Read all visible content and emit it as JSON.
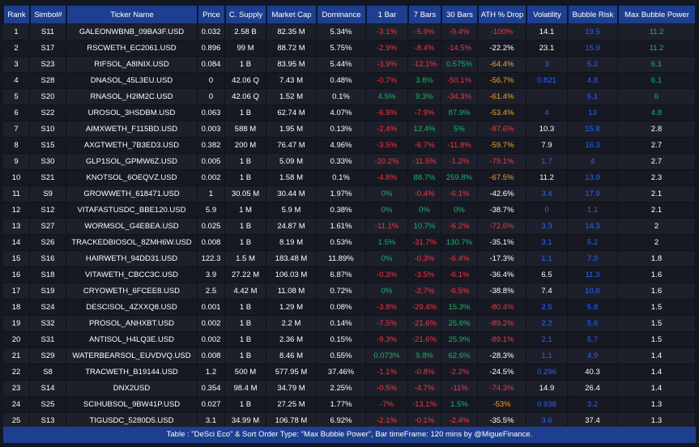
{
  "columns": [
    "Rank",
    "Simbol#",
    "Ticker Name",
    "Price",
    "C. Supply",
    "Market Cap",
    "Dominance",
    "1 Bar",
    "7 Bars",
    "30 Bars",
    "ATH % Drop",
    "Volatility",
    "Bubble Risk",
    "Max Bubble Power"
  ],
  "colors": {
    "red": "#f23645",
    "green": "#16b56a",
    "orange": "#f7a21b",
    "blue": "#2962ff",
    "header_bg": "#1e3f8f"
  },
  "rows": [
    {
      "rank": "1",
      "sym": "S11",
      "ticker": "GALEONWBNB_09BA3F.USD",
      "price": "0.032",
      "supply": "2.58 B",
      "mcap": "82.35 M",
      "dom": "5.34%",
      "b1": "-3.1%",
      "b1c": "red",
      "b7": "-5.9%",
      "b7c": "red",
      "b30": "-9.4%",
      "b30c": "red",
      "ath": "-100%",
      "athc": "red",
      "vol": "14.1",
      "volc": "white",
      "risk": "19.5",
      "riskc": "blue",
      "power": "11.2",
      "powerc": "green"
    },
    {
      "rank": "2",
      "sym": "S17",
      "ticker": "RSCWETH_EC2061.USD",
      "price": "0.896",
      "supply": "99 M",
      "mcap": "88.72 M",
      "dom": "5.75%",
      "b1": "-2.9%",
      "b1c": "red",
      "b7": "-8.4%",
      "b7c": "red",
      "b30": "-14.5%",
      "b30c": "red",
      "ath": "-22.2%",
      "athc": "white",
      "vol": "23.1",
      "volc": "white",
      "risk": "15.9",
      "riskc": "blue",
      "power": "11.2",
      "powerc": "green"
    },
    {
      "rank": "3",
      "sym": "S23",
      "ticker": "RIFSOL_A8INIX.USD",
      "price": "0.084",
      "supply": "1 B",
      "mcap": "83.95 M",
      "dom": "5.44%",
      "b1": "-3.9%",
      "b1c": "red",
      "b7": "-12.1%",
      "b7c": "red",
      "b30": "0.575%",
      "b30c": "green",
      "ath": "-64.4%",
      "athc": "orange",
      "vol": "3",
      "volc": "blue",
      "risk": "5.2",
      "riskc": "blue",
      "power": "6.1",
      "powerc": "green"
    },
    {
      "rank": "4",
      "sym": "S28",
      "ticker": "DNASOL_45L3EU.USD",
      "price": "0",
      "supply": "42.06 Q",
      "mcap": "7.43 M",
      "dom": "0.48%",
      "b1": "-0.7%",
      "b1c": "red",
      "b7": "3.8%",
      "b7c": "green",
      "b30": "-50.1%",
      "b30c": "red",
      "ath": "-56.7%",
      "athc": "orange",
      "vol": "0.821",
      "volc": "blue",
      "risk": "4.8",
      "riskc": "blue",
      "power": "6.1",
      "powerc": "green"
    },
    {
      "rank": "5",
      "sym": "S20",
      "ticker": "RNASOL_H2IM2C.USD",
      "price": "0",
      "supply": "42.06 Q",
      "mcap": "1.52 M",
      "dom": "0.1%",
      "b1": "4.5%",
      "b1c": "green",
      "b7": "9.3%",
      "b7c": "green",
      "b30": "-34.3%",
      "b30c": "red",
      "ath": "-61.4%",
      "athc": "orange",
      "vol": "",
      "volc": "white",
      "risk": "6.1",
      "riskc": "blue",
      "power": "6",
      "powerc": "green"
    },
    {
      "rank": "6",
      "sym": "S22",
      "ticker": "UROSOL_3HSDBM.USD",
      "price": "0.063",
      "supply": "1 B",
      "mcap": "62.74 M",
      "dom": "4.07%",
      "b1": "-6.9%",
      "b1c": "red",
      "b7": "-7.9%",
      "b7c": "red",
      "b30": "87.9%",
      "b30c": "green",
      "ath": "-53.4%",
      "athc": "orange",
      "vol": "4",
      "volc": "blue",
      "risk": "13",
      "riskc": "blue",
      "power": "4.8",
      "powerc": "green"
    },
    {
      "rank": "7",
      "sym": "S10",
      "ticker": "AIMXWETH_F115BD.USD",
      "price": "0.003",
      "supply": "588 M",
      "mcap": "1.95 M",
      "dom": "0.13%",
      "b1": "-2.4%",
      "b1c": "red",
      "b7": "12.4%",
      "b7c": "green",
      "b30": "5%",
      "b30c": "green",
      "ath": "-87.6%",
      "athc": "red",
      "vol": "10.3",
      "volc": "white",
      "risk": "15.8",
      "riskc": "blue",
      "power": "2.8",
      "powerc": "white"
    },
    {
      "rank": "8",
      "sym": "S15",
      "ticker": "AXGTWETH_7B3ED3.USD",
      "price": "0.382",
      "supply": "200 M",
      "mcap": "76.47 M",
      "dom": "4.96%",
      "b1": "-3.5%",
      "b1c": "red",
      "b7": "-6.7%",
      "b7c": "red",
      "b30": "-11.8%",
      "b30c": "red",
      "ath": "-59.7%",
      "athc": "orange",
      "vol": "7.9",
      "volc": "white",
      "risk": "16.3",
      "riskc": "blue",
      "power": "2.7",
      "powerc": "white"
    },
    {
      "rank": "9",
      "sym": "S30",
      "ticker": "GLP1SOL_GPMW6Z.USD",
      "price": "0.005",
      "supply": "1 B",
      "mcap": "5.09 M",
      "dom": "0.33%",
      "b1": "-20.2%",
      "b1c": "red",
      "b7": "-11.5%",
      "b7c": "red",
      "b30": "-1.2%",
      "b30c": "red",
      "ath": "-79.1%",
      "athc": "red",
      "vol": "1.7",
      "volc": "blue",
      "risk": "4",
      "riskc": "blue",
      "power": "2.7",
      "powerc": "white"
    },
    {
      "rank": "10",
      "sym": "S21",
      "ticker": "KNOTSOL_6OEQVZ.USD",
      "price": "0.002",
      "supply": "1 B",
      "mcap": "1.58 M",
      "dom": "0.1%",
      "b1": "-4.8%",
      "b1c": "red",
      "b7": "88.7%",
      "b7c": "green",
      "b30": "259.8%",
      "b30c": "green",
      "ath": "-67.5%",
      "athc": "orange",
      "vol": "11.2",
      "volc": "white",
      "risk": "13.9",
      "riskc": "blue",
      "power": "2.3",
      "powerc": "white"
    },
    {
      "rank": "11",
      "sym": "S9",
      "ticker": "GROWWETH_618471.USD",
      "price": "1",
      "supply": "30.05 M",
      "mcap": "30.44 M",
      "dom": "1.97%",
      "b1": "0%",
      "b1c": "green",
      "b7": "-0.4%",
      "b7c": "red",
      "b30": "-6.1%",
      "b30c": "red",
      "ath": "-42.6%",
      "athc": "white",
      "vol": "3.4",
      "volc": "blue",
      "risk": "17.9",
      "riskc": "blue",
      "power": "2.1",
      "powerc": "white"
    },
    {
      "rank": "12",
      "sym": "S12",
      "ticker": "VITAFASTUSDC_BBE120.USD",
      "price": "5.9",
      "supply": "1 M",
      "mcap": "5.9 M",
      "dom": "0.38%",
      "b1": "0%",
      "b1c": "green",
      "b7": "0%",
      "b7c": "green",
      "b30": "0%",
      "b30c": "green",
      "ath": "-38.7%",
      "athc": "white",
      "vol": "0",
      "volc": "blue",
      "risk": "1.1",
      "riskc": "blue",
      "power": "2.1",
      "powerc": "white"
    },
    {
      "rank": "13",
      "sym": "S27",
      "ticker": "WORMSOL_G4EBEA.USD",
      "price": "0.025",
      "supply": "1 B",
      "mcap": "24.87 M",
      "dom": "1.61%",
      "b1": "-11.1%",
      "b1c": "red",
      "b7": "10.7%",
      "b7c": "green",
      "b30": "-6.2%",
      "b30c": "red",
      "ath": "-72.6%",
      "athc": "red",
      "vol": "3.3",
      "volc": "blue",
      "risk": "14.3",
      "riskc": "blue",
      "power": "2",
      "powerc": "white"
    },
    {
      "rank": "14",
      "sym": "S26",
      "ticker": "TRACKEDBIOSOL_8ZMH6W.USD",
      "price": "0.008",
      "supply": "1 B",
      "mcap": "8.19 M",
      "dom": "0.53%",
      "b1": "1.5%",
      "b1c": "green",
      "b7": "-31.7%",
      "b7c": "red",
      "b30": "130.7%",
      "b30c": "green",
      "ath": "-35.1%",
      "athc": "white",
      "vol": "3.1",
      "volc": "blue",
      "risk": "5.2",
      "riskc": "blue",
      "power": "2",
      "powerc": "white"
    },
    {
      "rank": "15",
      "sym": "S16",
      "ticker": "HAIRWETH_94DD31.USD",
      "price": "122.3",
      "supply": "1.5 M",
      "mcap": "183.48 M",
      "dom": "11.89%",
      "b1": "0%",
      "b1c": "green",
      "b7": "-0.3%",
      "b7c": "red",
      "b30": "-6.4%",
      "b30c": "red",
      "ath": "-17.3%",
      "athc": "white",
      "vol": "1.1",
      "volc": "blue",
      "risk": "7.9",
      "riskc": "blue",
      "power": "1.8",
      "powerc": "white"
    },
    {
      "rank": "16",
      "sym": "S18",
      "ticker": "VITAWETH_CBCC3C.USD",
      "price": "3.9",
      "supply": "27.22 M",
      "mcap": "106.03 M",
      "dom": "6.87%",
      "b1": "-0.3%",
      "b1c": "red",
      "b7": "-3.5%",
      "b7c": "red",
      "b30": "-6.1%",
      "b30c": "red",
      "ath": "-36.4%",
      "athc": "white",
      "vol": "6.5",
      "volc": "white",
      "risk": "11.3",
      "riskc": "blue",
      "power": "1.6",
      "powerc": "white"
    },
    {
      "rank": "17",
      "sym": "S19",
      "ticker": "CRYOWETH_6FCEE8.USD",
      "price": "2.5",
      "supply": "4.42 M",
      "mcap": "11.08 M",
      "dom": "0.72%",
      "b1": "0%",
      "b1c": "green",
      "b7": "-2.7%",
      "b7c": "red",
      "b30": "-6.5%",
      "b30c": "red",
      "ath": "-38.8%",
      "athc": "white",
      "vol": "7.4",
      "volc": "white",
      "risk": "10.6",
      "riskc": "blue",
      "power": "1.6",
      "powerc": "white"
    },
    {
      "rank": "18",
      "sym": "S24",
      "ticker": "DESCISOL_4ZXXQ8.USD",
      "price": "0.001",
      "supply": "1 B",
      "mcap": "1.29 M",
      "dom": "0.08%",
      "b1": "-3.8%",
      "b1c": "red",
      "b7": "-29.4%",
      "b7c": "red",
      "b30": "15.3%",
      "b30c": "green",
      "ath": "-80.4%",
      "athc": "red",
      "vol": "2.5",
      "volc": "blue",
      "risk": "5.8",
      "riskc": "blue",
      "power": "1.5",
      "powerc": "white"
    },
    {
      "rank": "19",
      "sym": "S32",
      "ticker": "PROSOL_ANHXBT.USD",
      "price": "0.002",
      "supply": "1 B",
      "mcap": "2.2 M",
      "dom": "0.14%",
      "b1": "-7.5%",
      "b1c": "red",
      "b7": "-21.6%",
      "b7c": "red",
      "b30": "25.6%",
      "b30c": "green",
      "ath": "-89.2%",
      "athc": "red",
      "vol": "2.2",
      "volc": "blue",
      "risk": "5.6",
      "riskc": "blue",
      "power": "1.5",
      "powerc": "white"
    },
    {
      "rank": "20",
      "sym": "S31",
      "ticker": "ANTISOL_H4LQ3E.USD",
      "price": "0.002",
      "supply": "1 B",
      "mcap": "2.36 M",
      "dom": "0.15%",
      "b1": "-9.3%",
      "b1c": "red",
      "b7": "-21.6%",
      "b7c": "red",
      "b30": "25.9%",
      "b30c": "green",
      "ath": "-89.1%",
      "athc": "red",
      "vol": "2.1",
      "volc": "blue",
      "risk": "5.7",
      "riskc": "blue",
      "power": "1.5",
      "powerc": "white"
    },
    {
      "rank": "21",
      "sym": "S29",
      "ticker": "WATERBEARSOL_EUVDVQ.USD",
      "price": "0.008",
      "supply": "1 B",
      "mcap": "8.46 M",
      "dom": "0.55%",
      "b1": "0.073%",
      "b1c": "green",
      "b7": "9.8%",
      "b7c": "green",
      "b30": "62.6%",
      "b30c": "green",
      "ath": "-28.3%",
      "athc": "white",
      "vol": "1.1",
      "volc": "blue",
      "risk": "4.9",
      "riskc": "blue",
      "power": "1.4",
      "powerc": "white"
    },
    {
      "rank": "22",
      "sym": "S8",
      "ticker": "TRACWETH_B19144.USD",
      "price": "1.2",
      "supply": "500 M",
      "mcap": "577.95 M",
      "dom": "37.46%",
      "b1": "-1.1%",
      "b1c": "red",
      "b7": "-0.8%",
      "b7c": "red",
      "b30": "-2.2%",
      "b30c": "red",
      "ath": "-24.5%",
      "athc": "white",
      "vol": "0.296",
      "volc": "blue",
      "risk": "40.3",
      "riskc": "white",
      "power": "1.4",
      "powerc": "white"
    },
    {
      "rank": "23",
      "sym": "S14",
      "ticker": "DNX2USD",
      "price": "0.354",
      "supply": "98.4 M",
      "mcap": "34.79 M",
      "dom": "2.25%",
      "b1": "-0.5%",
      "b1c": "red",
      "b7": "-4.7%",
      "b7c": "red",
      "b30": "-11%",
      "b30c": "red",
      "ath": "-74.3%",
      "athc": "red",
      "vol": "14.9",
      "volc": "white",
      "risk": "26.4",
      "riskc": "white",
      "power": "1.4",
      "powerc": "white"
    },
    {
      "rank": "24",
      "sym": "S25",
      "ticker": "SCIHUBSOL_9BW41P.USD",
      "price": "0.027",
      "supply": "1 B",
      "mcap": "27.25 M",
      "dom": "1.77%",
      "b1": "-7%",
      "b1c": "red",
      "b7": "-13.1%",
      "b7c": "red",
      "b30": "1.5%",
      "b30c": "green",
      "ath": "-53%",
      "athc": "orange",
      "vol": "0.938",
      "volc": "blue",
      "risk": "3.2",
      "riskc": "blue",
      "power": "1.3",
      "powerc": "white"
    },
    {
      "rank": "25",
      "sym": "S13",
      "ticker": "TIGUSDC_5280D5.USD",
      "price": "3.1",
      "supply": "34.99 M",
      "mcap": "106.78 M",
      "dom": "6.92%",
      "b1": "-2.1%",
      "b1c": "red",
      "b7": "-0.1%",
      "b7c": "red",
      "b30": "-2.4%",
      "b30c": "red",
      "ath": "-35.5%",
      "athc": "white",
      "vol": "3.6",
      "volc": "blue",
      "risk": "37.4",
      "riskc": "white",
      "power": "1.3",
      "powerc": "white"
    }
  ],
  "footer": "Table : \"DeSci Eco\" & Sort Order Type: \"Max Bubble Power\", Bar timeFrame: 120 mins by @MigueFinance."
}
